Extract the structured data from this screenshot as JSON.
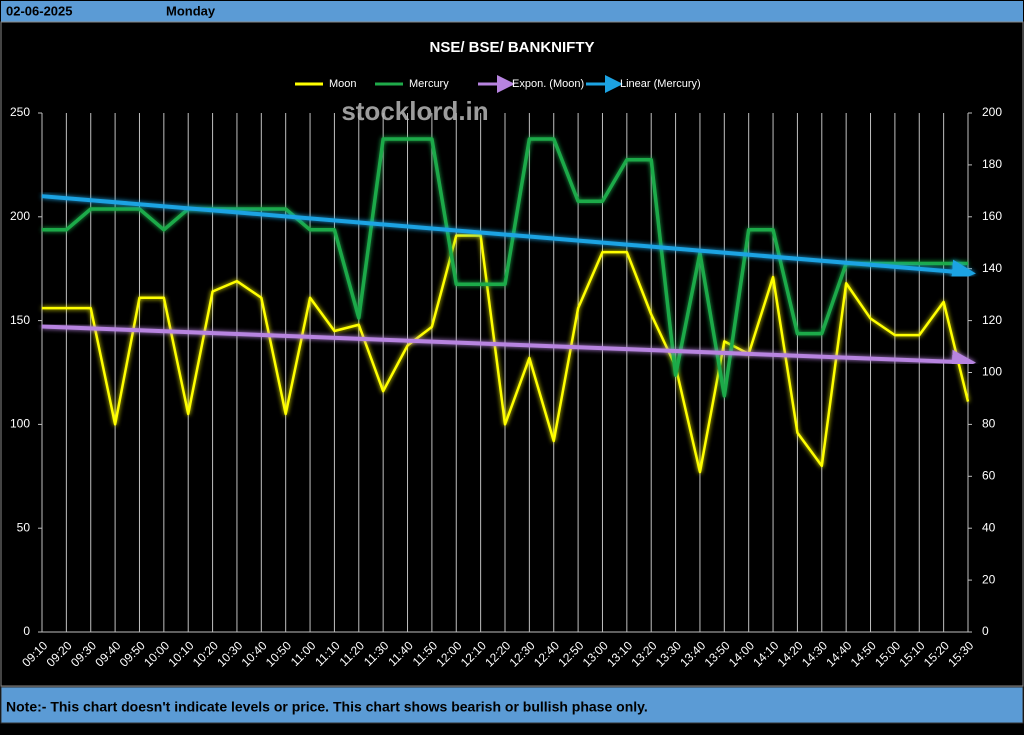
{
  "header": {
    "date": "02-06-2025",
    "day": "Monday"
  },
  "note": "Note:- This chart doesn't indicate levels or price. This chart shows bearish or bullish phase only.",
  "chart_data": {
    "type": "line",
    "title": "NSE/ BSE/ BANKNIFTY",
    "watermark": "stocklord.in",
    "categories": [
      "09:10",
      "09:20",
      "09:30",
      "09:40",
      "09:50",
      "10:00",
      "10:10",
      "10:20",
      "10:30",
      "10:40",
      "10:50",
      "11:00",
      "11:10",
      "11:20",
      "11:30",
      "11:40",
      "11:50",
      "12:00",
      "12:10",
      "12:20",
      "12:30",
      "12:40",
      "12:50",
      "13:00",
      "13:10",
      "13:20",
      "13:30",
      "13:40",
      "13:50",
      "14:00",
      "14:10",
      "14:20",
      "14:30",
      "14:40",
      "14:50",
      "15:00",
      "15:10",
      "15:20",
      "15:30"
    ],
    "series": [
      {
        "name": "Moon",
        "color": "#ffff00",
        "values": [
          156,
          156,
          156,
          100,
          161,
          161,
          105,
          164,
          169,
          161,
          105,
          161,
          145,
          148,
          116,
          138,
          147,
          191,
          191,
          100,
          132,
          92,
          156,
          183,
          183,
          153,
          128,
          77,
          140,
          134,
          171,
          96,
          80,
          168,
          151,
          143,
          143,
          159,
          111
        ],
        "trendline": {
          "name": "Expon. (Moon)",
          "type": "exponential",
          "color": "#b784e0"
        }
      },
      {
        "name": "Mercury",
        "color": "#1faa4a",
        "axis": "y2",
        "values": [
          155,
          155,
          163,
          163,
          163,
          155,
          163,
          163,
          163,
          163,
          163,
          155,
          155,
          121,
          190,
          190,
          190,
          134,
          134,
          134,
          190,
          190,
          166,
          166,
          182,
          182,
          99,
          146,
          91,
          155,
          155,
          115,
          115,
          142,
          142,
          142,
          142,
          142,
          142
        ],
        "trendline": {
          "name": "Linear (Mercury)",
          "type": "linear",
          "color": "#1ca3e3"
        }
      }
    ],
    "ylim": [
      0,
      250
    ],
    "yticks": [
      0,
      50,
      100,
      150,
      200,
      250
    ],
    "y2lim": [
      0,
      200
    ],
    "y2ticks": [
      0,
      20,
      40,
      60,
      80,
      100,
      120,
      140,
      160,
      180,
      200
    ],
    "grid": true
  }
}
